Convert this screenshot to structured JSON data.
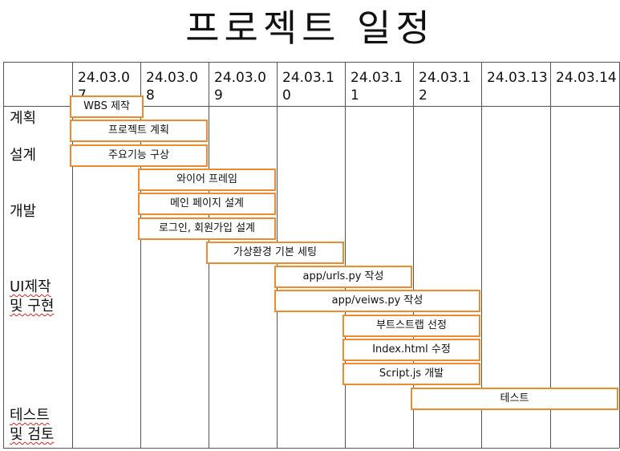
{
  "title": "프로젝트 일정",
  "dates": [
    "24.03.07",
    "24.03.08",
    "24.03.09",
    "24.03.10",
    "24.03.11",
    "24.03.12",
    "24.03.13",
    "24.03.14"
  ],
  "phases": [
    {
      "line1": "계획",
      "line2": ""
    },
    {
      "line1": "설계",
      "line2": ""
    },
    {
      "line1": "개발",
      "line2": ""
    },
    {
      "line1": "UI제작",
      "line2": "및 구현"
    },
    {
      "line1": "테스트",
      "line2": "및 검토"
    }
  ],
  "tasks": [
    {
      "label": "WBS 제작",
      "start": "24.03.07",
      "end": "24.03.07"
    },
    {
      "label": "프로젝트 계획",
      "start": "24.03.07",
      "end": "24.03.08"
    },
    {
      "label": "주요기능 구상",
      "start": "24.03.07",
      "end": "24.03.08"
    },
    {
      "label": "와이어 프레임",
      "start": "24.03.08",
      "end": "24.03.09"
    },
    {
      "label": "메인 페이지 설계",
      "start": "24.03.08",
      "end": "24.03.09"
    },
    {
      "label": "로그인, 회원가입 설계",
      "start": "24.03.08",
      "end": "24.03.09"
    },
    {
      "label": "가상환경 기본 세팅",
      "start": "24.03.09",
      "end": "24.03.10"
    },
    {
      "label": "app/urls.py 작성",
      "start": "24.03.10",
      "end": "24.03.11"
    },
    {
      "label": "app/veiws.py 작성",
      "start": "24.03.10",
      "end": "24.03.12"
    },
    {
      "label": "부트스트랩 선정",
      "start": "24.03.11",
      "end": "24.03.12"
    },
    {
      "label": "Index.html 수정",
      "start": "24.03.11",
      "end": "24.03.12"
    },
    {
      "label": "Script.js 개발",
      "start": "24.03.11",
      "end": "24.03.12"
    },
    {
      "label": "테스트",
      "start": "24.03.12",
      "end": "24.03.14"
    }
  ]
}
